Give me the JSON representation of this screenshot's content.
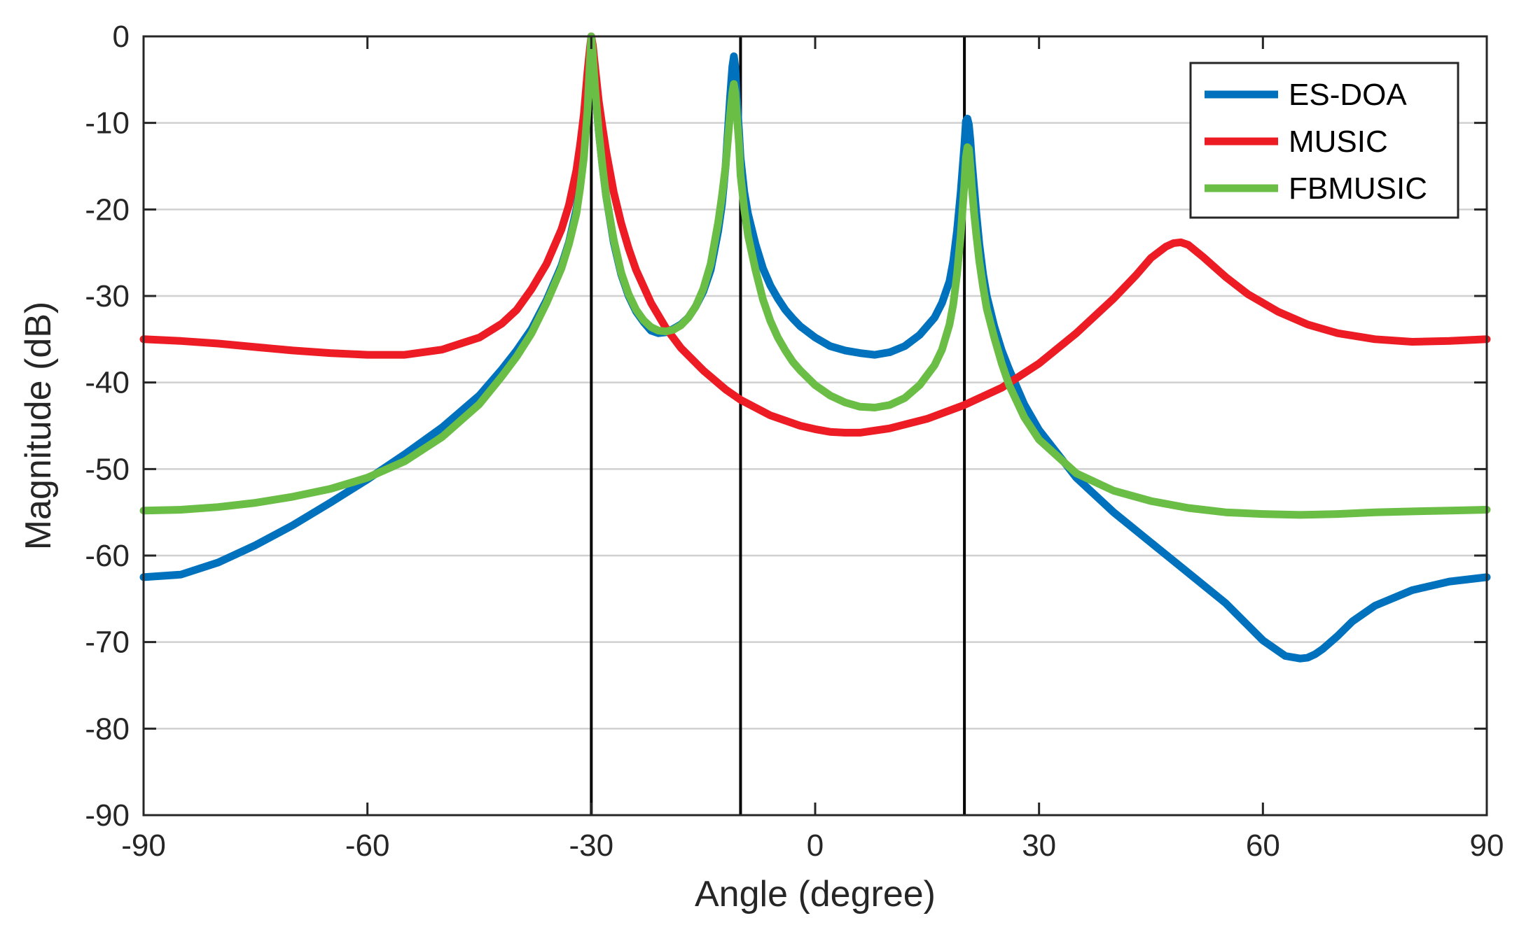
{
  "chart_data": {
    "type": "line",
    "title": "",
    "xlabel": "Angle (degree)",
    "ylabel": "Magnitude (dB)",
    "xlim": [
      -90,
      90
    ],
    "ylim": [
      -90,
      0
    ],
    "xticks": [
      -90,
      -60,
      -30,
      0,
      30,
      60,
      90
    ],
    "xtick_labels": [
      "-90",
      "-60",
      "-30",
      "0",
      "30",
      "60",
      "90"
    ],
    "yticks": [
      0,
      -10,
      -20,
      -30,
      -40,
      -50,
      -60,
      -70,
      -80,
      -90
    ],
    "ytick_labels": [
      "0",
      "-10",
      "-20",
      "-30",
      "-40",
      "-50",
      "-60",
      "-70",
      "-80",
      "-90"
    ],
    "grid": "horizontal",
    "legend_position": "top-right",
    "reference_lines": [
      -30,
      -10,
      20
    ],
    "series": [
      {
        "name": "ES-DOA",
        "color": "#0072BD",
        "x": [
          -90,
          -85,
          -80,
          -75,
          -70,
          -65,
          -60,
          -55,
          -50,
          -45,
          -42,
          -40,
          -38,
          -36,
          -34,
          -33,
          -32,
          -31.5,
          -31,
          -30.5,
          -30.2,
          -30,
          -29.8,
          -29.5,
          -29,
          -28.5,
          -28,
          -27,
          -26,
          -25,
          -24,
          -23,
          -22,
          -21,
          -20,
          -19,
          -18,
          -17,
          -16,
          -15,
          -14,
          -13,
          -12.5,
          -12,
          -11.7,
          -11.4,
          -11.1,
          -10.9,
          -10.7,
          -10.5,
          -10.2,
          -10,
          -9.5,
          -9,
          -8,
          -7,
          -6,
          -5,
          -4,
          -3,
          -2,
          0,
          2,
          4,
          6,
          8,
          10,
          12,
          14,
          16,
          17,
          18,
          18.5,
          19,
          19.5,
          20,
          20.2,
          20.4,
          20.6,
          20.8,
          21,
          21.3,
          21.6,
          22,
          22.5,
          23,
          24,
          25,
          26,
          28,
          30,
          35,
          40,
          45,
          50,
          55,
          60,
          63,
          65,
          66,
          67,
          68,
          70,
          72,
          75,
          80,
          85,
          90
        ],
        "y": [
          -62.5,
          -62.2,
          -60.8,
          -58.8,
          -56.5,
          -53.9,
          -51.2,
          -48.3,
          -45.2,
          -41.5,
          -38.5,
          -36.3,
          -33.8,
          -30.5,
          -26.5,
          -23.8,
          -20,
          -17.2,
          -13.5,
          -8,
          -3,
          0,
          -2,
          -6,
          -11,
          -15,
          -18.5,
          -23.8,
          -27.5,
          -30,
          -31.8,
          -33,
          -34,
          -34.3,
          -34.2,
          -33.8,
          -33.3,
          -32.5,
          -31.2,
          -29.5,
          -27,
          -22.5,
          -19.5,
          -15,
          -11,
          -7,
          -3.5,
          -2.3,
          -3.5,
          -7,
          -11,
          -14,
          -18,
          -20.5,
          -24,
          -26.8,
          -28.8,
          -30.3,
          -31.6,
          -32.6,
          -33.5,
          -34.8,
          -35.8,
          -36.3,
          -36.6,
          -36.8,
          -36.5,
          -35.8,
          -34.5,
          -32.5,
          -30.8,
          -28.3,
          -26,
          -22.5,
          -18,
          -12.5,
          -9.8,
          -9.5,
          -10.2,
          -12,
          -14.5,
          -17.5,
          -20.5,
          -24,
          -27.5,
          -30,
          -33.5,
          -36.3,
          -38.5,
          -42.5,
          -45.5,
          -51,
          -55,
          -58.5,
          -62,
          -65.5,
          -69.8,
          -71.6,
          -71.9,
          -71.8,
          -71.4,
          -70.8,
          -69.3,
          -67.6,
          -65.8,
          -64,
          -63,
          -62.5
        ]
      },
      {
        "name": "MUSIC",
        "color": "#ED1C24",
        "x": [
          -90,
          -85,
          -80,
          -75,
          -70,
          -65,
          -60,
          -55,
          -50,
          -45,
          -42,
          -40,
          -38,
          -36,
          -34,
          -33,
          -32,
          -31.5,
          -31,
          -30.5,
          -30.2,
          -30,
          -29.8,
          -29.5,
          -29,
          -28.5,
          -28,
          -27,
          -26,
          -25,
          -24,
          -22,
          -20,
          -18,
          -15,
          -12,
          -10,
          -6,
          -2,
          0,
          2,
          4,
          6,
          10,
          15,
          20,
          25,
          30,
          35,
          40,
          43,
          45,
          47,
          48,
          49,
          50,
          52,
          55,
          58,
          62,
          66,
          70,
          75,
          80,
          85,
          90
        ],
        "y": [
          -35,
          -35.2,
          -35.5,
          -35.9,
          -36.3,
          -36.6,
          -36.8,
          -36.8,
          -36.2,
          -34.8,
          -33.2,
          -31.6,
          -29.2,
          -26.3,
          -22.3,
          -19.5,
          -15.5,
          -12.5,
          -9,
          -4,
          -1.5,
          0,
          -1,
          -3.5,
          -7.5,
          -10.5,
          -13.3,
          -18,
          -21.6,
          -24.5,
          -27,
          -30.8,
          -33.7,
          -36,
          -38.6,
          -40.8,
          -42,
          -43.8,
          -45,
          -45.4,
          -45.7,
          -45.8,
          -45.8,
          -45.3,
          -44.2,
          -42.6,
          -40.6,
          -37.8,
          -34.3,
          -30.3,
          -27.6,
          -25.6,
          -24.3,
          -23.9,
          -23.8,
          -24.1,
          -25.5,
          -27.8,
          -29.8,
          -31.8,
          -33.3,
          -34.3,
          -35,
          -35.3,
          -35.2,
          -35
        ]
      },
      {
        "name": "FBMUSIC",
        "color": "#6ABD45",
        "x": [
          -90,
          -85,
          -80,
          -75,
          -70,
          -65,
          -60,
          -55,
          -50,
          -45,
          -42,
          -40,
          -38,
          -36,
          -34,
          -33,
          -32,
          -31.5,
          -31,
          -30.5,
          -30.2,
          -30,
          -29.8,
          -29.5,
          -29,
          -28.5,
          -28,
          -27,
          -26,
          -25,
          -24,
          -23,
          -22,
          -21,
          -20,
          -19,
          -18,
          -17,
          -16,
          -15,
          -14,
          -13,
          -12.5,
          -12,
          -11.7,
          -11.4,
          -11.1,
          -10.9,
          -10.7,
          -10.5,
          -10.2,
          -10,
          -9.5,
          -9,
          -8,
          -7,
          -6,
          -5,
          -4,
          -3,
          -2,
          0,
          2,
          4,
          6,
          8,
          10,
          12,
          14,
          16,
          17,
          18,
          18.5,
          19,
          19.5,
          20,
          20.2,
          20.4,
          20.6,
          20.8,
          21,
          21.3,
          21.6,
          22,
          22.5,
          23,
          24,
          25,
          26,
          28,
          30,
          35,
          40,
          45,
          50,
          55,
          60,
          65,
          70,
          75,
          80,
          85,
          90
        ],
        "y": [
          -54.8,
          -54.7,
          -54.4,
          -53.9,
          -53.2,
          -52.3,
          -51,
          -49.1,
          -46.3,
          -42.5,
          -39.3,
          -37,
          -34.3,
          -30.8,
          -26.8,
          -24,
          -20.5,
          -17.5,
          -14,
          -8.5,
          -3,
          0,
          -2,
          -6,
          -11,
          -15,
          -18.5,
          -23.5,
          -27.3,
          -29.8,
          -31.6,
          -32.8,
          -33.6,
          -34,
          -34.1,
          -33.9,
          -33.4,
          -32.5,
          -31.2,
          -29.2,
          -26.3,
          -21.5,
          -18.5,
          -15,
          -12,
          -9,
          -6.5,
          -5.5,
          -6.5,
          -9,
          -12.5,
          -16,
          -20,
          -23,
          -27,
          -30.4,
          -32.9,
          -34.8,
          -36.3,
          -37.6,
          -38.6,
          -40.3,
          -41.5,
          -42.3,
          -42.8,
          -42.9,
          -42.6,
          -41.8,
          -40.3,
          -38,
          -36.2,
          -33.3,
          -31,
          -27.5,
          -23,
          -17,
          -14,
          -12.8,
          -13,
          -15,
          -17.5,
          -20.5,
          -23,
          -26,
          -29,
          -31.5,
          -34.8,
          -37.8,
          -40.3,
          -44,
          -46.6,
          -50.5,
          -52.5,
          -53.7,
          -54.5,
          -55,
          -55.2,
          -55.3,
          -55.2,
          -55,
          -54.9,
          -54.8,
          -54.7
        ]
      }
    ]
  }
}
